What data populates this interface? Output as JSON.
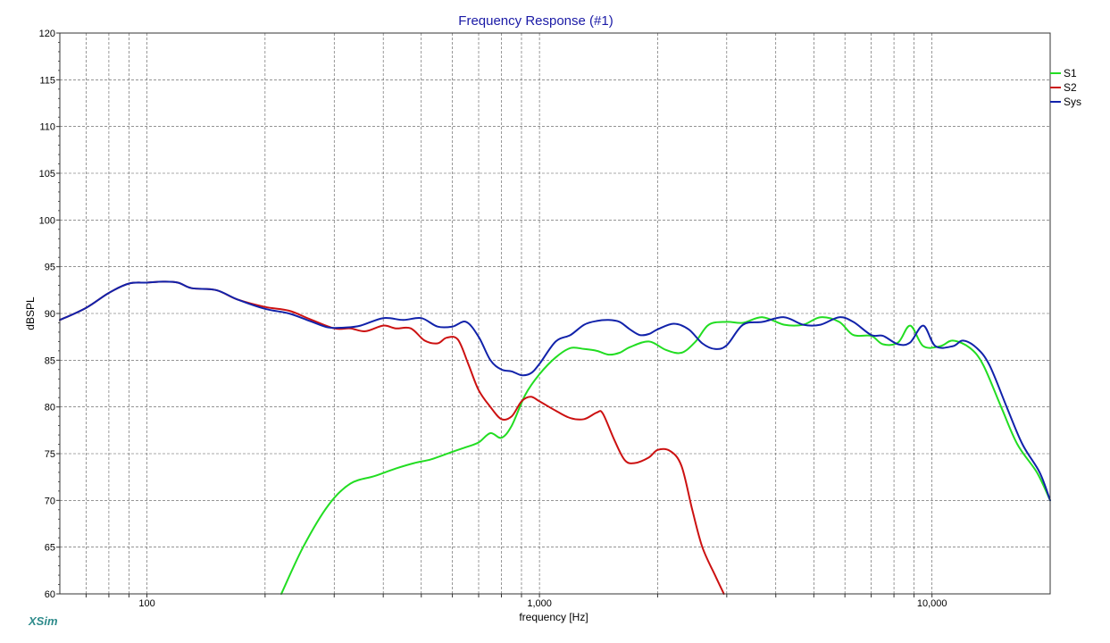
{
  "chart_data": {
    "type": "line",
    "title": "Frequency Response (#1)",
    "xlabel": "frequency [Hz]",
    "ylabel": "dBSPL",
    "xscale": "log",
    "xlim": [
      60,
      20000
    ],
    "ylim": [
      60,
      120
    ],
    "grid": true,
    "legend": "top-right",
    "x_tick_labels": [
      {
        "value": 100,
        "label": "100"
      },
      {
        "value": 1000,
        "label": "1,000"
      },
      {
        "value": 10000,
        "label": "10,000"
      }
    ],
    "y_ticks": [
      60,
      65,
      70,
      75,
      80,
      85,
      90,
      95,
      100,
      105,
      110,
      115,
      120
    ],
    "series": [
      {
        "name": "S1",
        "color": "#22dd22",
        "points": [
          [
            220,
            60
          ],
          [
            250,
            65
          ],
          [
            290,
            69.5
          ],
          [
            330,
            71.8
          ],
          [
            380,
            72.6
          ],
          [
            430,
            73.4
          ],
          [
            480,
            74
          ],
          [
            530,
            74.4
          ],
          [
            600,
            75.2
          ],
          [
            650,
            75.7
          ],
          [
            700,
            76.2
          ],
          [
            750,
            77.2
          ],
          [
            800,
            76.7
          ],
          [
            850,
            78
          ],
          [
            920,
            81.3
          ],
          [
            1000,
            83.5
          ],
          [
            1100,
            85.3
          ],
          [
            1200,
            86.3
          ],
          [
            1300,
            86.2
          ],
          [
            1400,
            86
          ],
          [
            1500,
            85.6
          ],
          [
            1600,
            85.8
          ],
          [
            1700,
            86.4
          ],
          [
            1900,
            87
          ],
          [
            2100,
            86.1
          ],
          [
            2300,
            85.8
          ],
          [
            2500,
            87
          ],
          [
            2700,
            88.8
          ],
          [
            3000,
            89.1
          ],
          [
            3300,
            89
          ],
          [
            3700,
            89.6
          ],
          [
            4200,
            88.8
          ],
          [
            4700,
            88.8
          ],
          [
            5200,
            89.6
          ],
          [
            5800,
            89.1
          ],
          [
            6300,
            87.7
          ],
          [
            7000,
            87.6
          ],
          [
            7500,
            86.7
          ],
          [
            8200,
            86.9
          ],
          [
            8800,
            88.7
          ],
          [
            9500,
            86.5
          ],
          [
            10500,
            86.5
          ],
          [
            11300,
            87.1
          ],
          [
            12500,
            86.3
          ],
          [
            13500,
            84.5
          ],
          [
            15000,
            80
          ],
          [
            16500,
            76
          ],
          [
            18500,
            73
          ],
          [
            20000,
            70
          ]
        ]
      },
      {
        "name": "S2",
        "color": "#cc1111",
        "points": [
          [
            60,
            89.3
          ],
          [
            70,
            90.6
          ],
          [
            80,
            92.2
          ],
          [
            90,
            93.2
          ],
          [
            100,
            93.3
          ],
          [
            110,
            93.4
          ],
          [
            120,
            93.3
          ],
          [
            130,
            92.7
          ],
          [
            150,
            92.5
          ],
          [
            170,
            91.5
          ],
          [
            200,
            90.7
          ],
          [
            230,
            90.3
          ],
          [
            260,
            89.4
          ],
          [
            300,
            88.4
          ],
          [
            330,
            88.4
          ],
          [
            360,
            88.1
          ],
          [
            400,
            88.7
          ],
          [
            430,
            88.4
          ],
          [
            470,
            88.4
          ],
          [
            510,
            87.1
          ],
          [
            550,
            86.8
          ],
          [
            580,
            87.4
          ],
          [
            620,
            87.2
          ],
          [
            660,
            84.5
          ],
          [
            700,
            81.8
          ],
          [
            750,
            80
          ],
          [
            800,
            78.7
          ],
          [
            850,
            79
          ],
          [
            900,
            80.6
          ],
          [
            950,
            81.1
          ],
          [
            1000,
            80.6
          ],
          [
            1100,
            79.6
          ],
          [
            1200,
            78.8
          ],
          [
            1300,
            78.7
          ],
          [
            1400,
            79.4
          ],
          [
            1450,
            79.3
          ],
          [
            1550,
            76.5
          ],
          [
            1650,
            74.3
          ],
          [
            1750,
            74
          ],
          [
            1900,
            74.6
          ],
          [
            2000,
            75.4
          ],
          [
            2150,
            75.3
          ],
          [
            2300,
            73.7
          ],
          [
            2450,
            69
          ],
          [
            2600,
            65
          ],
          [
            2800,
            62
          ],
          [
            2950,
            60
          ]
        ]
      },
      {
        "name": "Sys",
        "color": "#1122aa",
        "points": [
          [
            60,
            89.3
          ],
          [
            70,
            90.6
          ],
          [
            80,
            92.2
          ],
          [
            90,
            93.2
          ],
          [
            100,
            93.3
          ],
          [
            110,
            93.4
          ],
          [
            120,
            93.3
          ],
          [
            130,
            92.7
          ],
          [
            150,
            92.5
          ],
          [
            170,
            91.5
          ],
          [
            200,
            90.5
          ],
          [
            230,
            90
          ],
          [
            260,
            89.2
          ],
          [
            290,
            88.5
          ],
          [
            320,
            88.5
          ],
          [
            350,
            88.7
          ],
          [
            400,
            89.5
          ],
          [
            450,
            89.3
          ],
          [
            500,
            89.5
          ],
          [
            550,
            88.6
          ],
          [
            600,
            88.6
          ],
          [
            650,
            89.1
          ],
          [
            700,
            87.5
          ],
          [
            750,
            85
          ],
          [
            800,
            84
          ],
          [
            850,
            83.8
          ],
          [
            900,
            83.4
          ],
          [
            950,
            83.6
          ],
          [
            1000,
            84.6
          ],
          [
            1100,
            87
          ],
          [
            1200,
            87.7
          ],
          [
            1300,
            88.8
          ],
          [
            1400,
            89.2
          ],
          [
            1500,
            89.3
          ],
          [
            1600,
            89.1
          ],
          [
            1700,
            88.3
          ],
          [
            1800,
            87.7
          ],
          [
            1900,
            87.8
          ],
          [
            2000,
            88.3
          ],
          [
            2200,
            88.9
          ],
          [
            2400,
            88.3
          ],
          [
            2600,
            86.8
          ],
          [
            2800,
            86.2
          ],
          [
            3000,
            86.6
          ],
          [
            3300,
            88.8
          ],
          [
            3700,
            89.1
          ],
          [
            4200,
            89.6
          ],
          [
            4700,
            88.8
          ],
          [
            5200,
            88.8
          ],
          [
            5800,
            89.6
          ],
          [
            6300,
            89.1
          ],
          [
            7000,
            87.7
          ],
          [
            7500,
            87.6
          ],
          [
            8200,
            86.7
          ],
          [
            8800,
            86.9
          ],
          [
            9500,
            88.7
          ],
          [
            10200,
            86.5
          ],
          [
            11300,
            86.5
          ],
          [
            12000,
            87.1
          ],
          [
            13000,
            86.3
          ],
          [
            14000,
            84.5
          ],
          [
            15500,
            80
          ],
          [
            17000,
            76
          ],
          [
            18800,
            73
          ],
          [
            20000,
            70
          ]
        ]
      }
    ]
  },
  "branding": {
    "logo_text": "XSim"
  }
}
